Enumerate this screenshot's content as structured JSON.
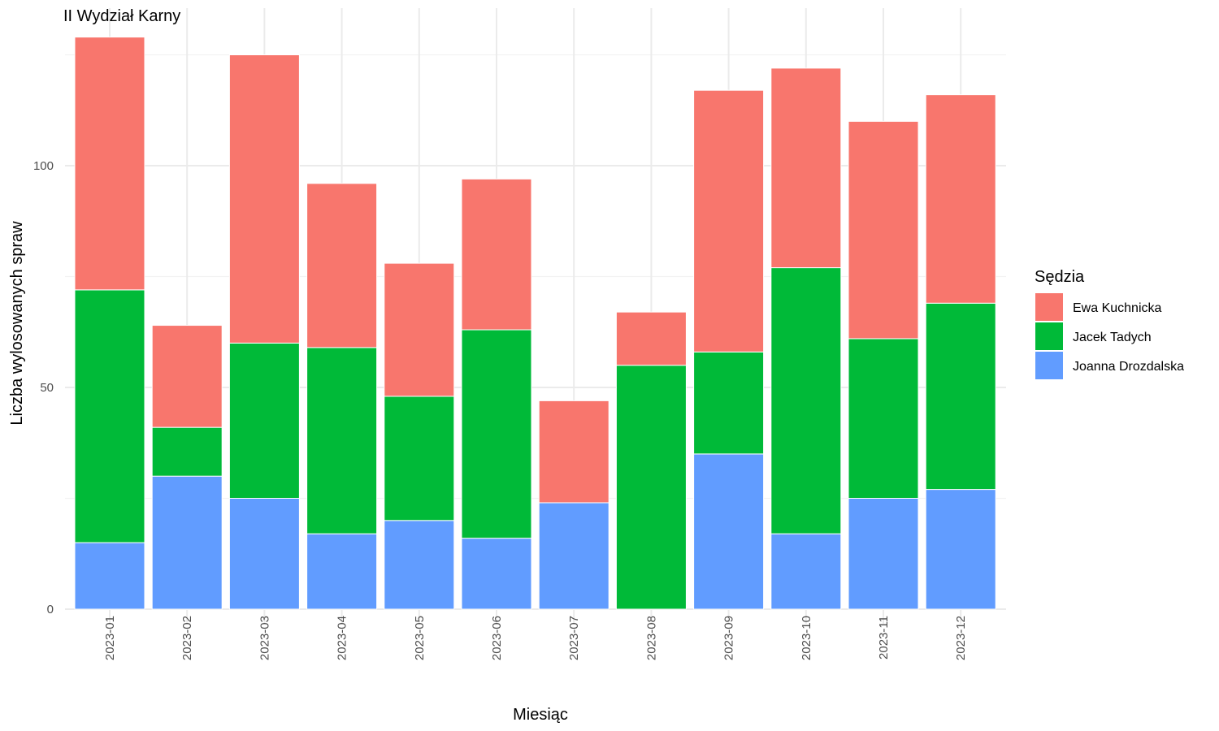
{
  "chart_data": {
    "type": "bar",
    "stacked": true,
    "title": "II Wydział Karny",
    "xlabel": "Miesiąc",
    "ylabel": "Liczba wylosowanych spraw",
    "ylim": [
      0,
      130
    ],
    "yticks": [
      0,
      50,
      100
    ],
    "grid": true,
    "legend_title": "Sędzia",
    "legend_position": "right",
    "categories": [
      "2023-01",
      "2023-02",
      "2023-03",
      "2023-04",
      "2023-05",
      "2023-06",
      "2023-07",
      "2023-08",
      "2023-09",
      "2023-10",
      "2023-11",
      "2023-12"
    ],
    "series": [
      {
        "name": "Joanna Drozdalska",
        "color": "#619CFF",
        "values": [
          15,
          30,
          25,
          17,
          20,
          16,
          24,
          0,
          35,
          17,
          25,
          27
        ]
      },
      {
        "name": "Jacek Tadych",
        "color": "#00BA38",
        "values": [
          57,
          11,
          35,
          42,
          28,
          47,
          0,
          55,
          23,
          60,
          36,
          42
        ]
      },
      {
        "name": "Ewa Kuchnicka",
        "color": "#F8766D",
        "values": [
          57,
          23,
          65,
          37,
          30,
          34,
          23,
          12,
          59,
          45,
          49,
          47
        ]
      }
    ],
    "legend_order": [
      "Ewa Kuchnicka",
      "Jacek Tadych",
      "Joanna Drozdalska"
    ]
  }
}
